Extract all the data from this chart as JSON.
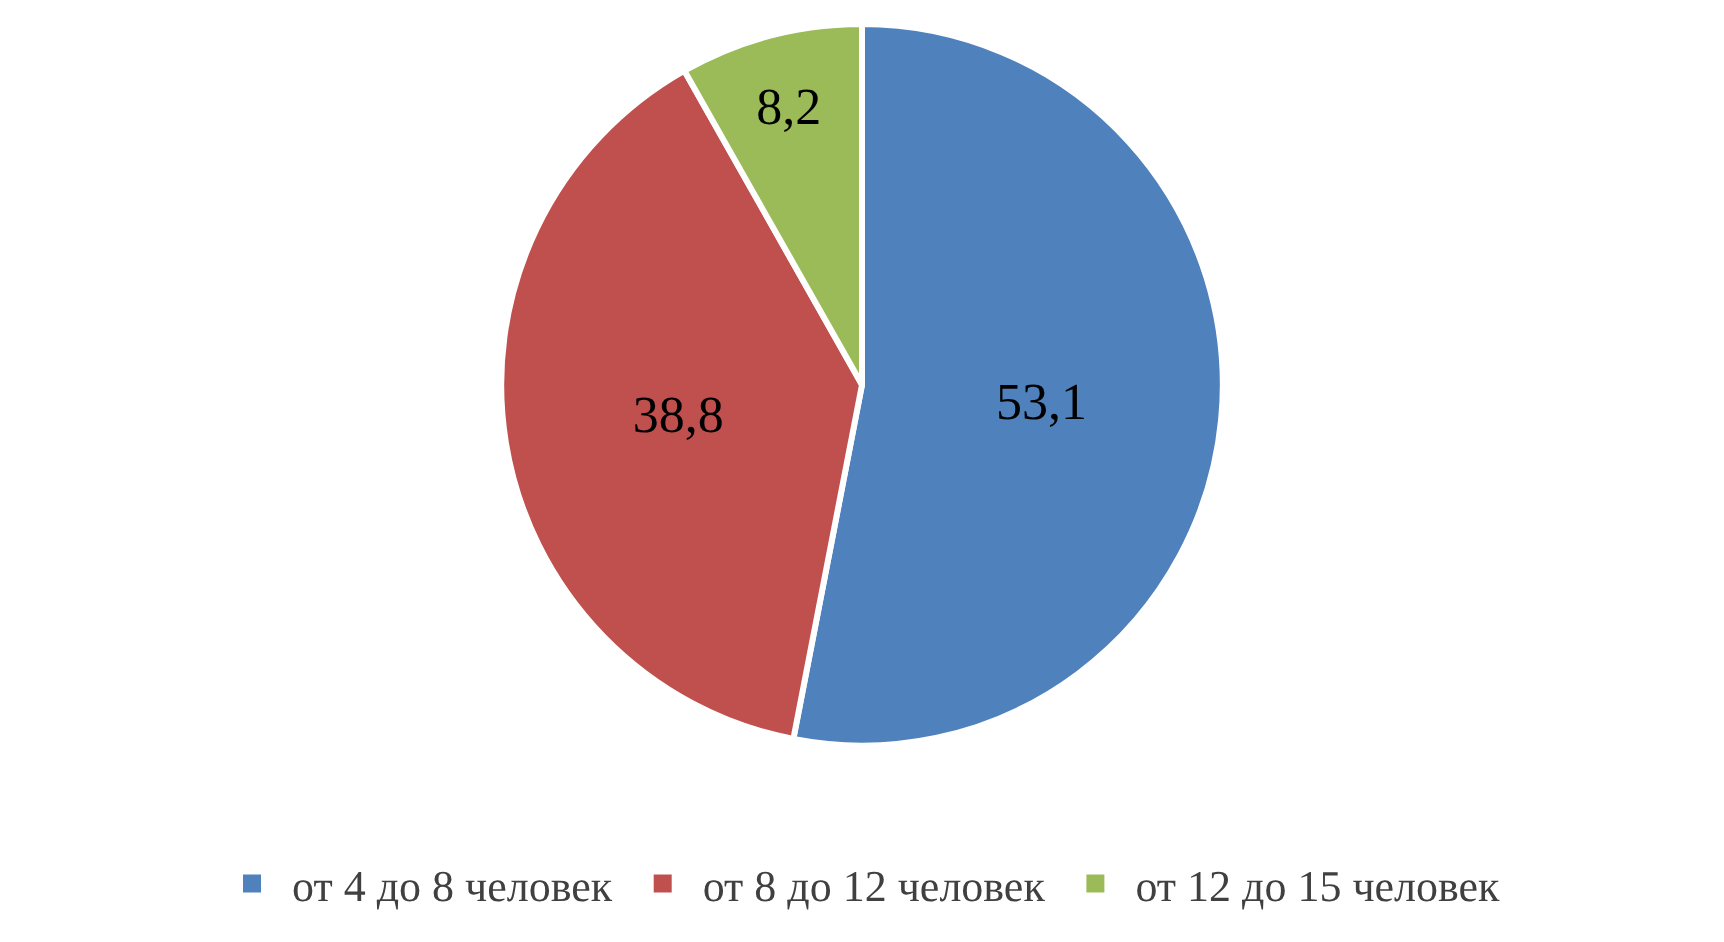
{
  "chart_data": {
    "type": "pie",
    "categories": [
      "от 4 до 8 человек",
      "от 8 до 12 человек",
      "от 12 до 15 человек"
    ],
    "values": [
      53.1,
      38.8,
      8.2
    ],
    "value_labels": [
      "53,1",
      "38,8",
      "8,2"
    ],
    "colors": [
      "#4f81bd",
      "#c0504d",
      "#9bbb59"
    ],
    "legend": "bottom"
  }
}
